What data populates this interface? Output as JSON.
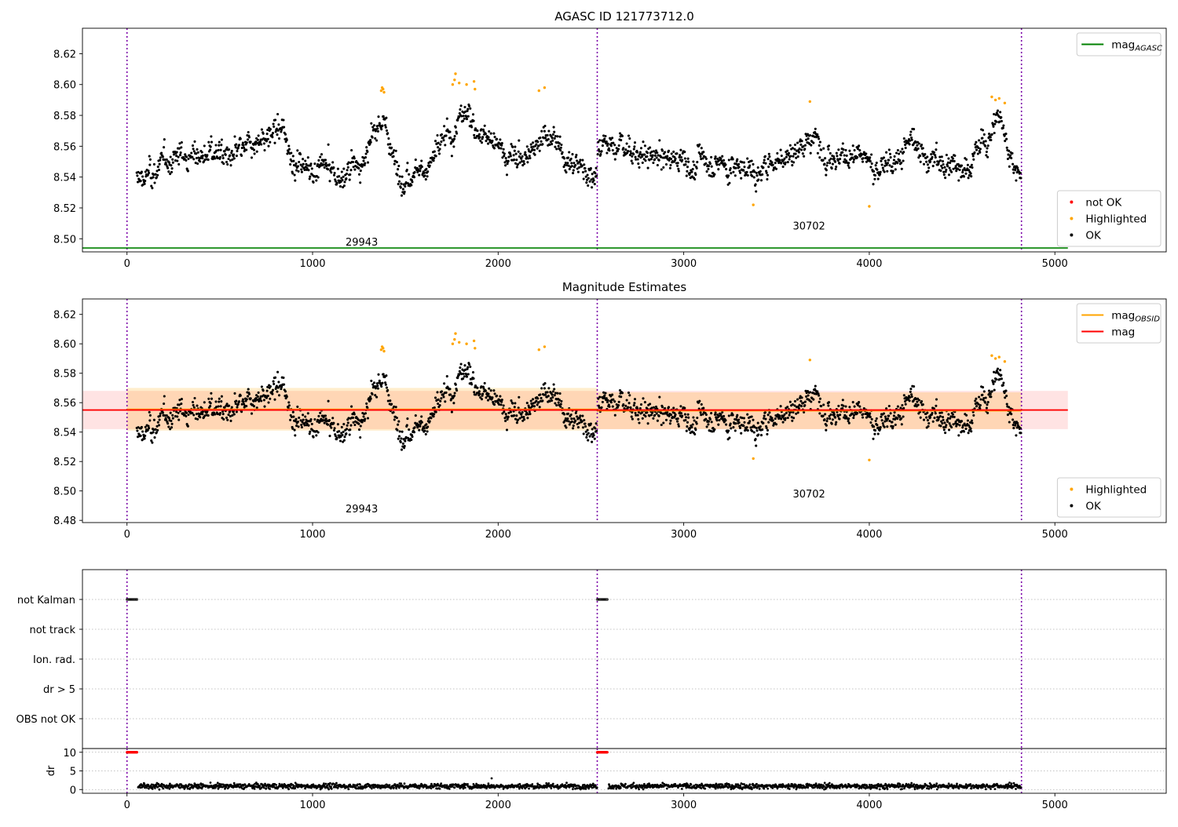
{
  "chart_data": [
    {
      "id": "p1",
      "type": "scatter",
      "title": "AGASC ID 121773712.0",
      "xlim": [
        -240,
        5600
      ],
      "ylim": [
        8.4915,
        8.6365
      ],
      "x_ticks": [
        0,
        1000,
        2000,
        3000,
        4000,
        5000
      ],
      "y_ticks": [
        8.5,
        8.52,
        8.54,
        8.56,
        8.58,
        8.6,
        8.62
      ],
      "obs_boundaries": [
        0,
        2534,
        4820
      ],
      "obs_labels": [
        {
          "text": "29943",
          "x": 1265,
          "y": 8.4955
        },
        {
          "text": "30702",
          "x": 3675,
          "y": 8.506
        }
      ],
      "hlines": [
        {
          "name": "mag_AGASC",
          "y": 8.494,
          "x": [
            -240,
            5070
          ],
          "color": "#008000"
        }
      ],
      "legends": [
        {
          "position": "top-right",
          "entries": [
            {
              "kind": "line",
              "label": "mag",
              "sub": "AGASC",
              "color": "#008000"
            }
          ]
        },
        {
          "position": "bottom-right",
          "entries": [
            {
              "kind": "dot",
              "label": "not OK",
              "color": "#ff0000"
            },
            {
              "kind": "dot",
              "label": "Highlighted",
              "color": "#ffa500"
            },
            {
              "kind": "dot",
              "label": "OK",
              "color": "#000000"
            }
          ]
        }
      ]
    },
    {
      "id": "p2",
      "type": "scatter",
      "title": "Magnitude Estimates",
      "xlim": [
        -240,
        5600
      ],
      "ylim": [
        8.4785,
        8.6305
      ],
      "x_ticks": [
        0,
        1000,
        2000,
        3000,
        4000,
        5000
      ],
      "y_ticks": [
        8.48,
        8.5,
        8.52,
        8.54,
        8.56,
        8.58,
        8.6,
        8.62
      ],
      "obs_boundaries": [
        0,
        2534,
        4820
      ],
      "obs_labels": [
        {
          "text": "29943",
          "x": 1265,
          "y": 8.4855
        },
        {
          "text": "30702",
          "x": 3675,
          "y": 8.4955
        }
      ],
      "bands": [
        {
          "name": "mag",
          "low": 8.542,
          "high": 8.568,
          "x": [
            -240,
            5070
          ],
          "color": "#ff0000",
          "opacity": 0.11
        },
        {
          "name": "mag_OBSID 29943",
          "low": 8.541,
          "high": 8.57,
          "x": [
            0,
            2534
          ],
          "color": "#ffa500",
          "opacity": 0.2
        },
        {
          "name": "mag_OBSID 30702",
          "low": 8.542,
          "high": 8.567,
          "x": [
            2534,
            4820
          ],
          "color": "#ffa500",
          "opacity": 0.2
        }
      ],
      "hlines": [
        {
          "name": "mag_OBSID 29943",
          "y": 8.5555,
          "x": [
            0,
            2534
          ],
          "color": "#ffa500"
        },
        {
          "name": "mag_OBSID 30702",
          "y": 8.5545,
          "x": [
            2534,
            4820
          ],
          "color": "#ffa500"
        },
        {
          "name": "mag",
          "y": 8.555,
          "x": [
            -240,
            5070
          ],
          "color": "#ff0000"
        }
      ],
      "legends": [
        {
          "position": "top-right",
          "entries": [
            {
              "kind": "line",
              "label": "mag",
              "sub": "OBSID",
              "color": "#ffa500"
            },
            {
              "kind": "line",
              "label": "mag",
              "sub": "",
              "color": "#ff0000"
            }
          ]
        },
        {
          "position": "bottom-right",
          "entries": [
            {
              "kind": "dot",
              "label": "Highlighted",
              "color": "#ffa500"
            },
            {
              "kind": "dot",
              "label": "OK",
              "color": "#000000"
            }
          ]
        }
      ]
    },
    {
      "id": "p3",
      "type": "scatter",
      "title": "",
      "categories": [
        "not Kalman",
        "not track",
        "Ion. rad.",
        "dr > 5",
        "OBS not OK"
      ],
      "flags": [
        {
          "category": "not Kalman",
          "x": [
            [
              0,
              55
            ],
            [
              2534,
              2590
            ]
          ]
        }
      ],
      "obs_boundaries": [
        0,
        2534,
        4820
      ],
      "xlim": [
        -240,
        5600
      ]
    },
    {
      "id": "p4",
      "type": "scatter",
      "title": "",
      "ylabel": "dr",
      "xlim": [
        -240,
        5600
      ],
      "ylim": [
        -1,
        11
      ],
      "x_ticks": [
        0,
        1000,
        2000,
        3000,
        4000,
        5000
      ],
      "y_ticks": [
        0,
        5,
        10
      ],
      "obs_boundaries": [
        0,
        2534,
        4820
      ],
      "clipped_points": [
        {
          "y": 10,
          "x": [
            0,
            55
          ],
          "color": "#ff0000"
        },
        {
          "y": 10,
          "x": [
            2534,
            2590
          ],
          "color": "#ff0000"
        }
      ],
      "dr_typical": {
        "x": [
          [
            60,
            2534
          ],
          [
            2595,
            4820
          ]
        ],
        "y_range": [
          0,
          2
        ],
        "outlier": {
          "x": 1965,
          "y": 3
        }
      }
    }
  ],
  "series_summary": {
    "mag": {
      "segments": [
        {
          "obsid": "29943",
          "x": [
            50,
            2534
          ],
          "levels": [
            [
              50,
              8.537
            ],
            [
              150,
              8.543
            ],
            [
              300,
              8.555
            ],
            [
              450,
              8.556
            ],
            [
              600,
              8.552
            ],
            [
              800,
              8.568
            ],
            [
              950,
              8.548
            ],
            [
              1150,
              8.54
            ],
            [
              1300,
              8.555
            ],
            [
              1380,
              8.578
            ],
            [
              1450,
              8.545
            ],
            [
              1650,
              8.551
            ],
            [
              1800,
              8.58
            ],
            [
              1900,
              8.572
            ],
            [
              2000,
              8.557
            ],
            [
              2150,
              8.552
            ],
            [
              2250,
              8.57
            ],
            [
              2350,
              8.555
            ],
            [
              2534,
              8.545
            ]
          ]
        },
        {
          "obsid": "30702",
          "x": [
            2534,
            4820
          ],
          "levels": [
            [
              2534,
              8.56
            ],
            [
              2700,
              8.56
            ],
            [
              2900,
              8.55
            ],
            [
              3100,
              8.552
            ],
            [
              3350,
              8.545
            ],
            [
              3500,
              8.55
            ],
            [
              3700,
              8.567
            ],
            [
              3900,
              8.555
            ],
            [
              4050,
              8.545
            ],
            [
              4200,
              8.562
            ],
            [
              4400,
              8.548
            ],
            [
              4550,
              8.548
            ],
            [
              4700,
              8.577
            ],
            [
              4820,
              8.545
            ]
          ]
        }
      ],
      "noise": 0.006,
      "highlighted": [
        [
          1370,
          8.596
        ],
        [
          1375,
          8.598
        ],
        [
          1380,
          8.597
        ],
        [
          1385,
          8.595
        ],
        [
          1765,
          8.603
        ],
        [
          1770,
          8.607
        ],
        [
          1755,
          8.6
        ],
        [
          1790,
          8.601
        ],
        [
          1830,
          8.6
        ],
        [
          1870,
          8.602
        ],
        [
          1875,
          8.597
        ],
        [
          2220,
          8.596
        ],
        [
          2250,
          8.598
        ],
        [
          3375,
          8.522
        ],
        [
          3680,
          8.589
        ],
        [
          4000,
          8.521
        ],
        [
          4660,
          8.592
        ],
        [
          4680,
          8.59
        ],
        [
          4700,
          8.591
        ],
        [
          4730,
          8.588
        ]
      ]
    }
  }
}
